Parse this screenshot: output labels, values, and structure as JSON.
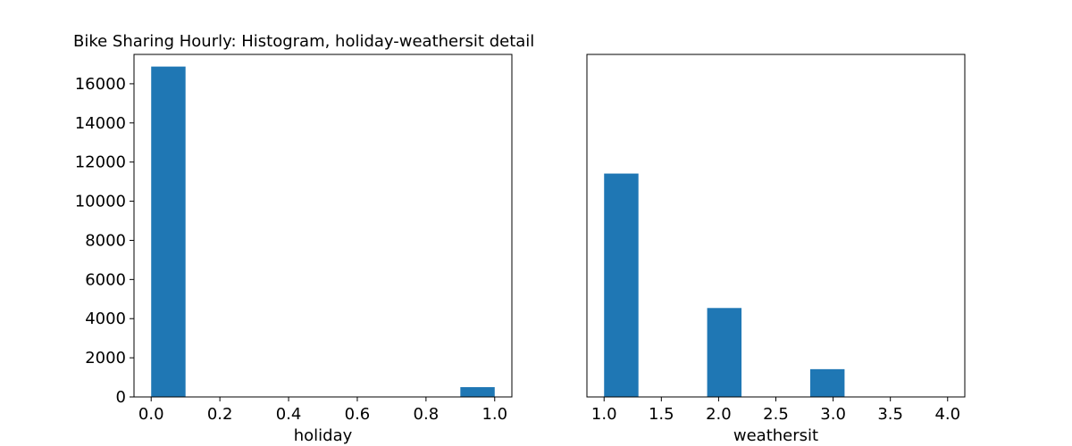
{
  "title": "Bike Sharing Hourly: Histogram, holiday-weathersit detail",
  "colors": {
    "bar": "#1f77b4"
  },
  "chart_data": [
    {
      "type": "bar",
      "subtype": "histogram",
      "xlabel": "holiday",
      "ylabel": "",
      "xlim": [
        -0.05,
        1.05
      ],
      "ylim": [
        0,
        17500
      ],
      "xticks": [
        0.0,
        0.2,
        0.4,
        0.6,
        0.8,
        1.0
      ],
      "xtick_labels": [
        "0.0",
        "0.2",
        "0.4",
        "0.6",
        "0.8",
        "1.0"
      ],
      "yticks": [
        0,
        2000,
        4000,
        6000,
        8000,
        10000,
        12000,
        14000,
        16000
      ],
      "ytick_labels": [
        "0",
        "2000",
        "4000",
        "6000",
        "8000",
        "10000",
        "12000",
        "14000",
        "16000"
      ],
      "bins": [
        0.0,
        0.1,
        0.2,
        0.3,
        0.4,
        0.5,
        0.6,
        0.7,
        0.8,
        0.9,
        1.0
      ],
      "counts": [
        16879,
        0,
        0,
        0,
        0,
        0,
        0,
        0,
        0,
        500
      ]
    },
    {
      "type": "bar",
      "subtype": "histogram",
      "xlabel": "weathersit",
      "ylabel": "",
      "xlim": [
        0.85,
        4.15
      ],
      "ylim": [
        0,
        17500
      ],
      "xticks": [
        1.0,
        1.5,
        2.0,
        2.5,
        3.0,
        3.5,
        4.0
      ],
      "xtick_labels": [
        "1.0",
        "1.5",
        "2.0",
        "2.5",
        "3.0",
        "3.5",
        "4.0"
      ],
      "yticks": [],
      "ytick_labels": [],
      "bins": [
        1.0,
        1.3,
        1.6,
        1.9,
        2.2,
        2.5,
        2.8,
        3.1,
        3.4,
        3.7,
        4.0
      ],
      "counts": [
        11413,
        0,
        0,
        4544,
        0,
        0,
        1419,
        0,
        0,
        3
      ]
    }
  ]
}
